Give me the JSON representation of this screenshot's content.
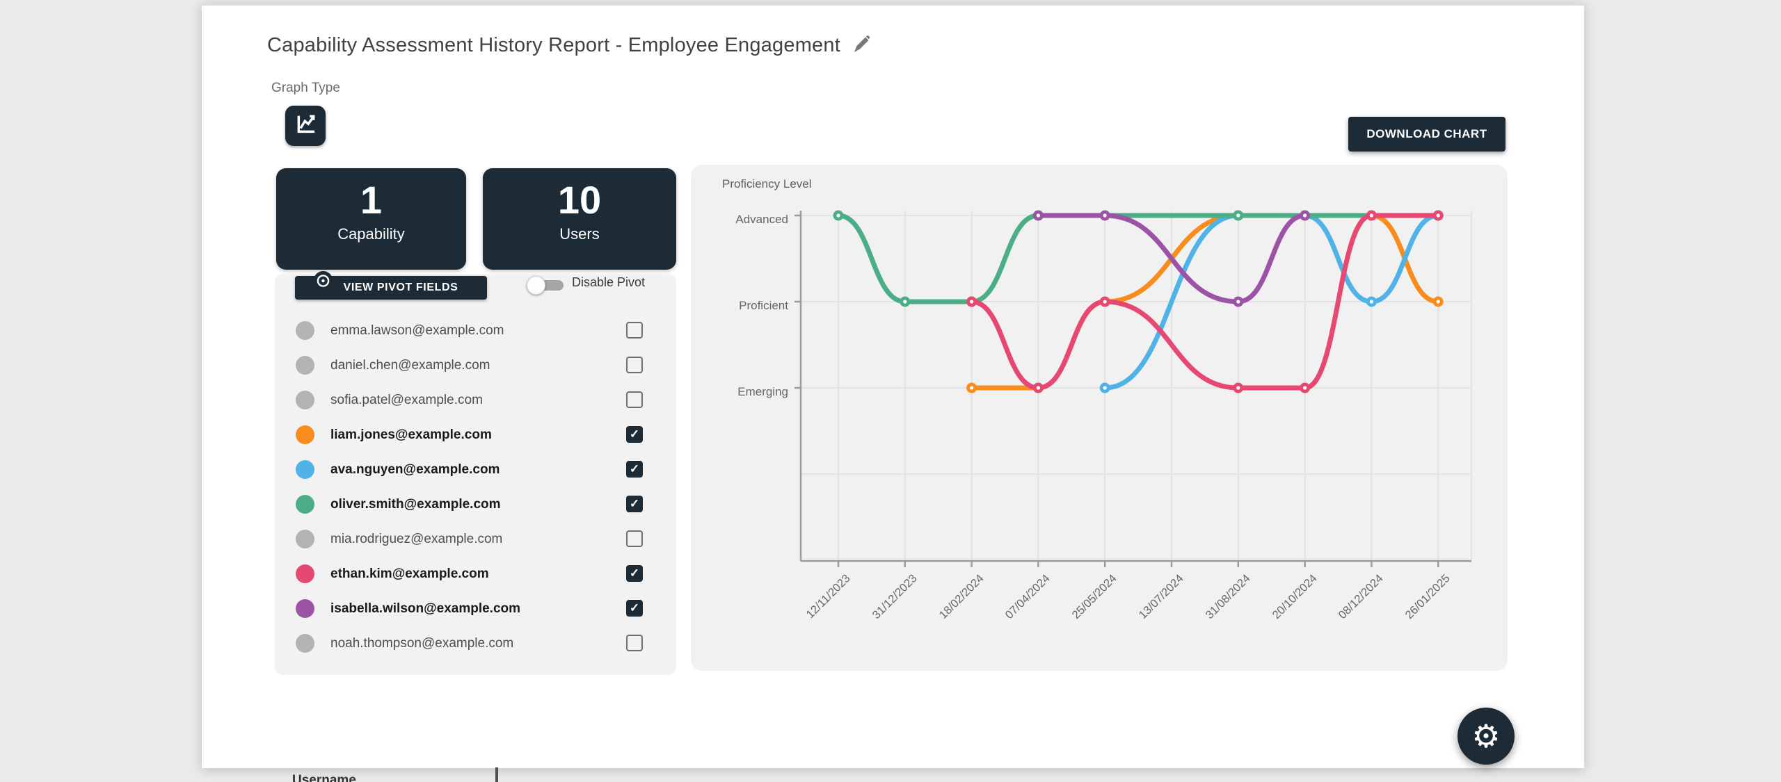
{
  "page": {
    "title": "Capability Assessment History Report - Employee Engagement",
    "graph_type_label": "Graph Type"
  },
  "stats": [
    {
      "value": "1",
      "label": "Capability"
    },
    {
      "value": "10",
      "label": "Users"
    }
  ],
  "pivot": {
    "button_label": "VIEW PIVOT FIELDS",
    "toggle_label": "Disable Pivot",
    "toggle_on": false
  },
  "users": [
    {
      "email": "emma.lawson@example.com",
      "color": "#b3b3b3",
      "checked": false
    },
    {
      "email": "daniel.chen@example.com",
      "color": "#b3b3b3",
      "checked": false
    },
    {
      "email": "sofia.patel@example.com",
      "color": "#b3b3b3",
      "checked": false
    },
    {
      "email": "liam.jones@example.com",
      "color": "#f88c1c",
      "checked": true
    },
    {
      "email": "ava.nguyen@example.com",
      "color": "#4fb3e8",
      "checked": true
    },
    {
      "email": "oliver.smith@example.com",
      "color": "#4bae86",
      "checked": true
    },
    {
      "email": "mia.rodriguez@example.com",
      "color": "#b3b3b3",
      "checked": false
    },
    {
      "email": "ethan.kim@example.com",
      "color": "#e64872",
      "checked": true
    },
    {
      "email": "isabella.wilson@example.com",
      "color": "#9c53a6",
      "checked": true
    },
    {
      "email": "noah.thompson@example.com",
      "color": "#b3b3b3",
      "checked": false
    }
  ],
  "download_button_label": "DOWNLOAD CHART",
  "bottom": {
    "partial_table_header": "Username"
  },
  "icons": {
    "check": "✓",
    "gear": "⚙"
  },
  "chart_data": {
    "type": "line",
    "title": "Proficiency Level",
    "categories": [
      "12/11/2023",
      "31/12/2023",
      "18/02/2024",
      "07/04/2024",
      "25/05/2024",
      "13/07/2024",
      "31/08/2024",
      "20/10/2024",
      "08/12/2024",
      "26/01/2025"
    ],
    "y_levels": [
      {
        "label": "Advanced",
        "value": 3
      },
      {
        "label": "Proficient",
        "value": 2
      },
      {
        "label": "Emerging",
        "value": 1
      }
    ],
    "y_range": [
      -1,
      3
    ],
    "grid": true,
    "legend_position": "none",
    "series": [
      {
        "name": "liam.jones@example.com",
        "color": "#f88c1c",
        "values": [
          null,
          null,
          1,
          1,
          2,
          null,
          3,
          3,
          3,
          2
        ]
      },
      {
        "name": "ava.nguyen@example.com",
        "color": "#4fb3e8",
        "values": [
          null,
          null,
          null,
          null,
          1,
          null,
          3,
          3,
          2,
          3
        ]
      },
      {
        "name": "oliver.smith@example.com",
        "color": "#4bae86",
        "values": [
          3,
          2,
          2,
          3,
          null,
          null,
          3,
          null,
          null,
          3
        ]
      },
      {
        "name": "ethan.kim@example.com",
        "color": "#e64872",
        "values": [
          null,
          null,
          2,
          1,
          2,
          null,
          1,
          1,
          3,
          3
        ]
      },
      {
        "name": "isabella.wilson@example.com",
        "color": "#9c53a6",
        "values": [
          null,
          null,
          null,
          3,
          3,
          null,
          2,
          3,
          null,
          null
        ]
      }
    ]
  }
}
